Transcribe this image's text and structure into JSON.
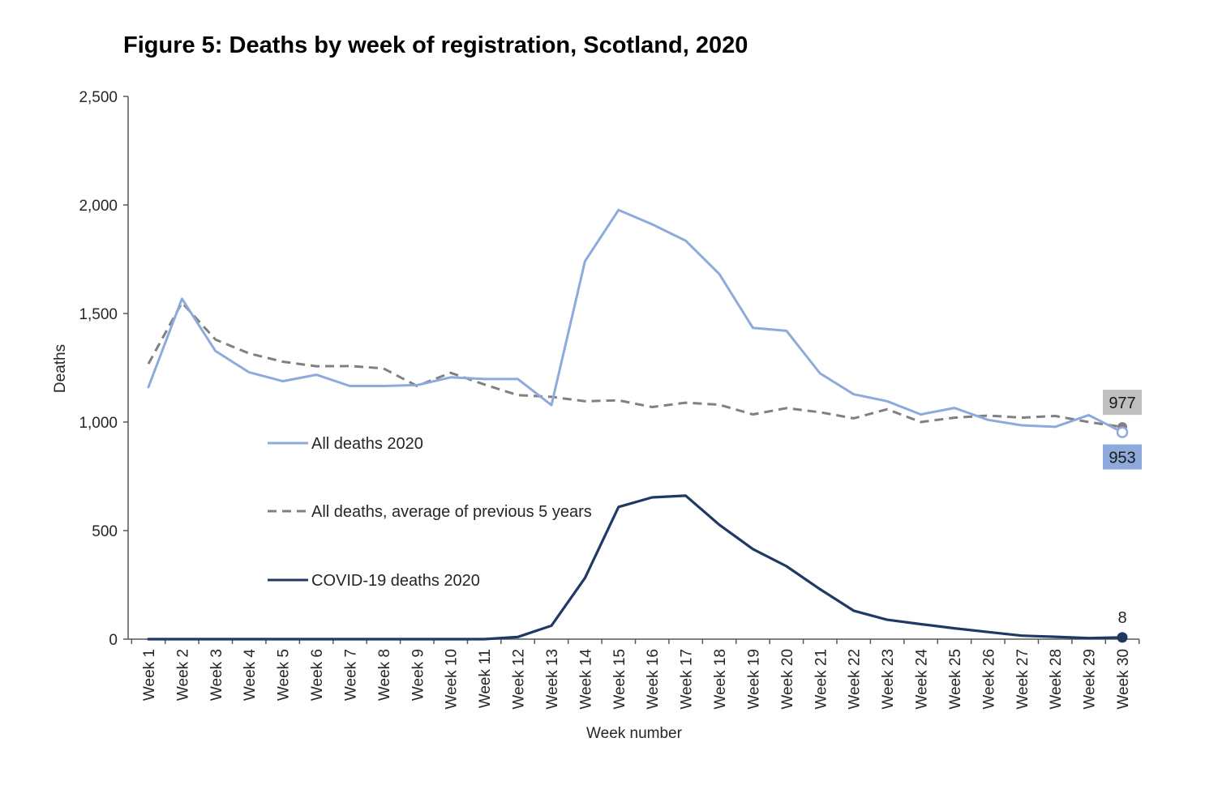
{
  "chart_data": {
    "type": "line",
    "title": "Figure 5: Deaths by week of registration, Scotland, 2020",
    "xlabel": "Week number",
    "ylabel": "Deaths",
    "ylim": [
      0,
      2500
    ],
    "yticks": [
      0,
      500,
      1000,
      1500,
      2000,
      2500
    ],
    "ytick_labels": [
      "0",
      "500",
      "1,000",
      "1,500",
      "2,000",
      "2,500"
    ],
    "grid": false,
    "legend_position": "center-left",
    "categories": [
      "Week 1",
      "Week 2",
      "Week 3",
      "Week 4",
      "Week 5",
      "Week 6",
      "Week 7",
      "Week 8",
      "Week 9",
      "Week 10",
      "Week 11",
      "Week 12",
      "Week 13",
      "Week 14",
      "Week 15",
      "Week 16",
      "Week 17",
      "Week 18",
      "Week 19",
      "Week 20",
      "Week 21",
      "Week 22",
      "Week 23",
      "Week 24",
      "Week 25",
      "Week 26",
      "Week 27",
      "Week 28",
      "Week 29",
      "Week 30"
    ],
    "series": [
      {
        "name": "All deaths 2020",
        "color": "#8eaadb",
        "dash": "solid",
        "values": [
          1161,
          1568,
          1327,
          1229,
          1188,
          1218,
          1166,
          1166,
          1170,
          1206,
          1198,
          1198,
          1078,
          1741,
          1977,
          1911,
          1835,
          1682,
          1434,
          1420,
          1224,
          1128,
          1096,
          1035,
          1065,
          1010,
          985,
          978,
          1032,
          953
        ],
        "end_label": "953"
      },
      {
        "name": "All deaths, average of previous 5 years",
        "color": "#808080",
        "dash": "dashed",
        "values": [
          1268,
          1550,
          1380,
          1316,
          1278,
          1257,
          1258,
          1247,
          1166,
          1227,
          1173,
          1124,
          1116,
          1096,
          1100,
          1069,
          1089,
          1080,
          1035,
          1064,
          1045,
          1017,
          1059,
          1000,
          1020,
          1030,
          1020,
          1028,
          1000,
          977
        ],
        "end_label": "977"
      },
      {
        "name": "COVID-19 deaths 2020",
        "color": "#1f3864",
        "dash": "solid",
        "values": [
          0,
          0,
          0,
          0,
          0,
          0,
          0,
          0,
          0,
          0,
          0,
          10,
          62,
          282,
          609,
          653,
          661,
          527,
          415,
          336,
          230,
          131,
          89,
          69,
          50,
          33,
          16,
          11,
          5,
          8
        ],
        "end_label": "8"
      }
    ]
  }
}
